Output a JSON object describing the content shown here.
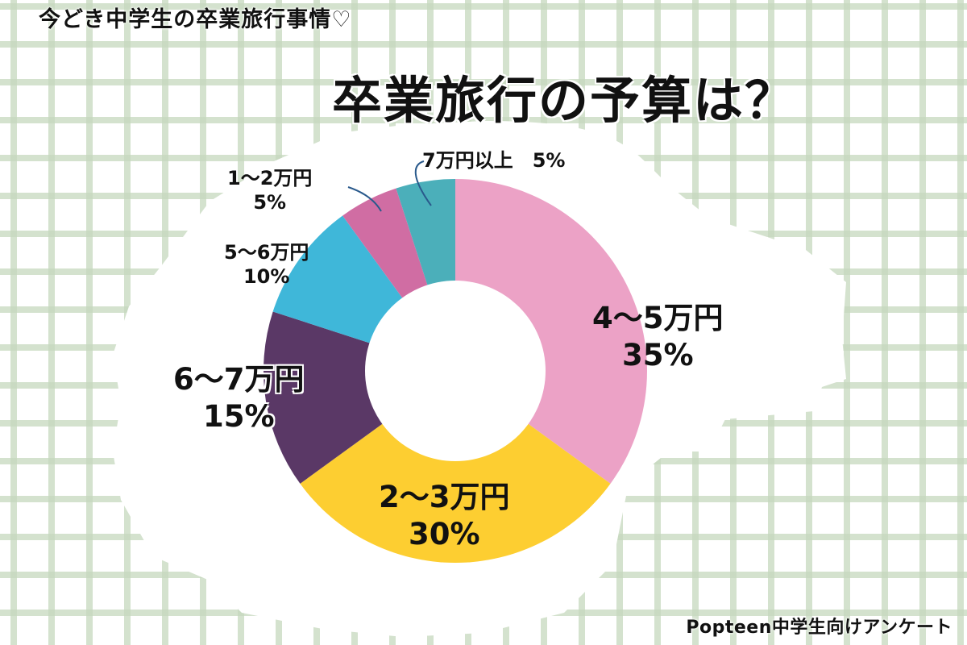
{
  "header": {
    "subtitle": "今どき中学生の卒業旅行事情♡",
    "title": "卒業旅行の予算は？"
  },
  "footer": {
    "source": "Popteen中学生向けアンケート"
  },
  "colors": {
    "background": "#ffffff",
    "grid": "#c6d8be",
    "leader_line": "#2a5a8c"
  },
  "chart_data": {
    "type": "pie",
    "variant": "donut",
    "title": "卒業旅行の予算は？",
    "subtitle": "今どき中学生の卒業旅行事情♡",
    "source": "Popteen中学生向けアンケート",
    "start_angle": "12 o'clock, clockwise",
    "categories": [
      "4〜5万円",
      "2〜3万円",
      "6〜7万円",
      "5〜6万円",
      "1〜2万円",
      "7万円以上"
    ],
    "values": [
      35,
      30,
      15,
      10,
      5,
      5
    ],
    "unit": "%",
    "slice_colors": [
      "#eca2c6",
      "#fdce31",
      "#5a3866",
      "#3fb7d9",
      "#d06da3",
      "#4bafba"
    ],
    "labels": [
      {
        "name": "4〜5万円",
        "pct": "35%"
      },
      {
        "name": "2〜3万円",
        "pct": "30%"
      },
      {
        "name": "6〜7万円",
        "pct": "15%"
      },
      {
        "name": "5〜6万円",
        "pct": "10%"
      },
      {
        "name": "1〜2万円",
        "pct": "5%"
      },
      {
        "name": "7万円以上",
        "pct": "5%",
        "inline": "7万円以上　5%"
      }
    ],
    "legend": "none (labels placed next to slices)"
  }
}
